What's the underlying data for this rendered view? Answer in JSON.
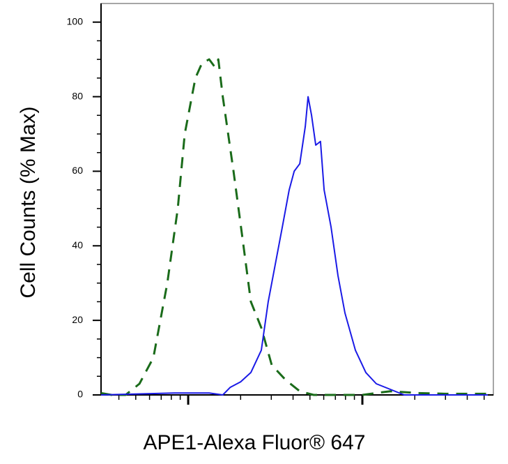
{
  "chart_data": {
    "type": "line",
    "xlabel": "APE1-Alexa Fluor® 647",
    "ylabel": "Cell Counts (% Max)",
    "xscale": "log",
    "xlim": [
      31.6,
      5650
    ],
    "xticks": [
      100,
      1000
    ],
    "xminorticks": [
      40,
      50,
      60,
      70,
      80,
      90,
      200,
      300,
      400,
      500,
      600,
      700,
      800,
      900,
      2000,
      3000,
      4000,
      5000
    ],
    "ylim": [
      0,
      105
    ],
    "yticks": [
      0,
      20,
      40,
      60,
      80,
      100
    ],
    "yminorticks": [
      5,
      10,
      15,
      25,
      30,
      35,
      45,
      50,
      55,
      65,
      70,
      75,
      85,
      90,
      95
    ],
    "series": [
      {
        "color": "#1a6b1a",
        "dash": true,
        "x": [
          31.6,
          36.3,
          43.7,
          52.5,
          63.1,
          75.9,
          87.1,
          95.5,
          110,
          120,
          132,
          142,
          149,
          158,
          182,
          205,
          229,
          263,
          302,
          363,
          437,
          525,
          692,
          1000,
          1202,
          1445,
          2089,
          3020,
          5248
        ],
        "values": [
          0.5,
          0,
          0,
          3,
          10,
          30,
          50,
          70,
          85,
          89,
          90,
          88,
          90,
          80,
          60,
          42,
          25,
          18,
          8,
          4,
          1,
          0,
          0,
          0,
          0.5,
          1,
          0.5,
          0.3,
          0.3
        ]
      },
      {
        "color": "#1a1ae6",
        "dash": false,
        "x": [
          31.6,
          83.2,
          132,
          158,
          174,
          200,
          229,
          263,
          288,
          316,
          347,
          380,
          406,
          437,
          470,
          488,
          511,
          540,
          575,
          603,
          661,
          724,
          794,
          912,
          1047,
          1202,
          1445,
          1738,
          5248
        ],
        "values": [
          0,
          0.5,
          0.5,
          0,
          2,
          3.5,
          6,
          12,
          25,
          35,
          45,
          55,
          60,
          62,
          72,
          80,
          75,
          67,
          68,
          55,
          45,
          32,
          22,
          12,
          6,
          3,
          1.5,
          0,
          0
        ]
      }
    ]
  }
}
